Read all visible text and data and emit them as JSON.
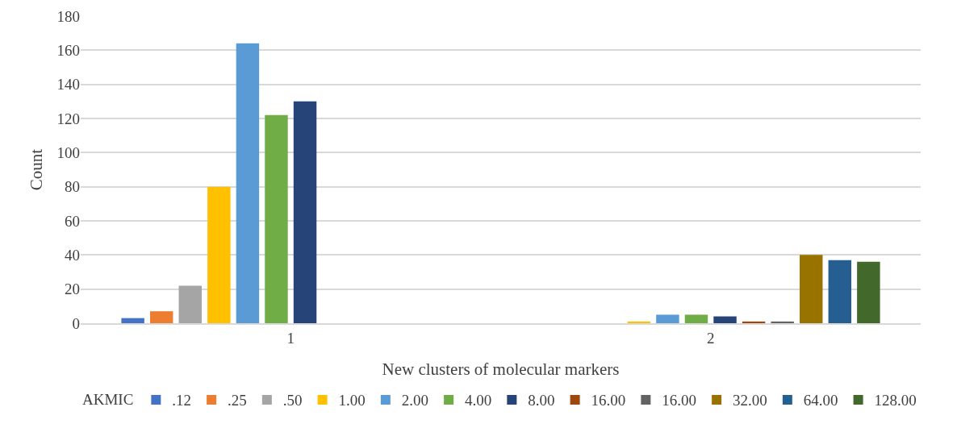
{
  "chart_data": {
    "type": "bar",
    "xlabel": "New clusters of molecular markers",
    "ylabel": "Count",
    "legend_title": "AKMIC",
    "categories": [
      "1",
      "2"
    ],
    "series": [
      {
        "name": ".12",
        "color": "#4472c4",
        "values": [
          3,
          0
        ]
      },
      {
        "name": ".25",
        "color": "#ed7d31",
        "values": [
          7,
          0
        ]
      },
      {
        "name": ".50",
        "color": "#a5a5a5",
        "values": [
          22,
          0
        ]
      },
      {
        "name": "1.00",
        "color": "#ffc000",
        "values": [
          80,
          1
        ]
      },
      {
        "name": "2.00",
        "color": "#5b9bd5",
        "values": [
          164,
          5
        ]
      },
      {
        "name": "4.00",
        "color": "#70ad47",
        "values": [
          122,
          5
        ]
      },
      {
        "name": "8.00",
        "color": "#264478",
        "values": [
          130,
          4
        ]
      },
      {
        "name": "16.00",
        "color": "#9e480e",
        "values": [
          0,
          1
        ]
      },
      {
        "name": "16.00",
        "color": "#636363",
        "values": [
          0,
          1
        ]
      },
      {
        "name": "32.00",
        "color": "#997300",
        "values": [
          0,
          40
        ]
      },
      {
        "name": "64.00",
        "color": "#255e91",
        "values": [
          0,
          37
        ]
      },
      {
        "name": "128.00",
        "color": "#43682b",
        "values": [
          0,
          36
        ]
      }
    ],
    "ylim": [
      0,
      180
    ],
    "yticks": [
      0,
      20,
      40,
      60,
      80,
      100,
      120,
      140,
      160,
      180
    ],
    "grid": "y",
    "legend": "bottom"
  }
}
